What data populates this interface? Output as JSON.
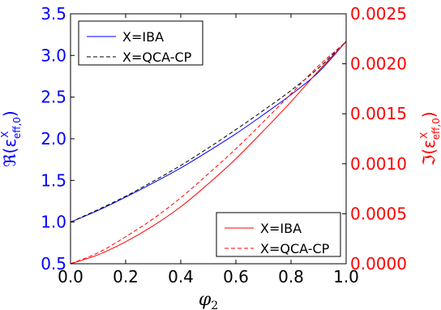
{
  "chart_data": {
    "type": "line",
    "x": [
      0.0,
      0.1,
      0.2,
      0.3,
      0.4,
      0.5,
      0.6,
      0.7,
      0.8,
      0.9,
      1.0
    ],
    "xlabel": "φ2",
    "xlim": [
      0.0,
      1.0
    ],
    "xticks": [
      "0.0",
      "0.2",
      "0.4",
      "0.6",
      "0.8",
      "1.0"
    ],
    "left_axis": {
      "label_main": "ℜ(ε",
      "label_sup": "X",
      "label_sub": "eff,0",
      "label_close": ")",
      "ylim": [
        0.5,
        3.5
      ],
      "ticks": [
        "0.5",
        "1.0",
        "1.5",
        "2.0",
        "2.5",
        "3.0",
        "3.5"
      ],
      "color": "#0000ff"
    },
    "right_axis": {
      "label_main": "ℑ(ε",
      "label_sup": "X",
      "label_sub": "eff,0",
      "label_close": ")",
      "ylim": [
        0.0,
        0.0025
      ],
      "ticks": [
        "0.0000",
        "0.0005",
        "0.0010",
        "0.0015",
        "0.0020",
        "0.0025"
      ],
      "color": "#ff0000"
    },
    "series": [
      {
        "name": "X=IBA",
        "axis": "left",
        "color": "#0000ff",
        "dash": "solid",
        "values": [
          1.0,
          1.14,
          1.3,
          1.47,
          1.65,
          1.85,
          2.06,
          2.29,
          2.53,
          2.8,
          3.17
        ]
      },
      {
        "name": "X=QCA-CP",
        "axis": "left",
        "color": "#000000",
        "dash": "dashed",
        "values": [
          1.0,
          1.15,
          1.31,
          1.49,
          1.68,
          1.89,
          2.11,
          2.34,
          2.58,
          2.85,
          3.17
        ]
      },
      {
        "name": "X=IBA",
        "axis": "right",
        "color": "#ff0000",
        "dash": "solid",
        "values": [
          0.0,
          9e-05,
          0.00022,
          0.00038,
          0.00057,
          0.0008,
          0.00105,
          0.00133,
          0.00162,
          0.00193,
          0.00222
        ]
      },
      {
        "name": "X=QCA-CP",
        "axis": "right",
        "color": "#ff0000",
        "dash": "dashed",
        "values": [
          0.0,
          0.00011,
          0.00027,
          0.00045,
          0.00066,
          0.0009,
          0.00115,
          0.00142,
          0.0017,
          0.00198,
          0.00222
        ]
      }
    ],
    "legends": [
      {
        "position": "top-left",
        "entries": [
          "X=IBA",
          "X=QCA-CP"
        ]
      },
      {
        "position": "bottom-right",
        "entries": [
          "X=IBA",
          "X=QCA-CP"
        ]
      }
    ],
    "grid": false
  }
}
